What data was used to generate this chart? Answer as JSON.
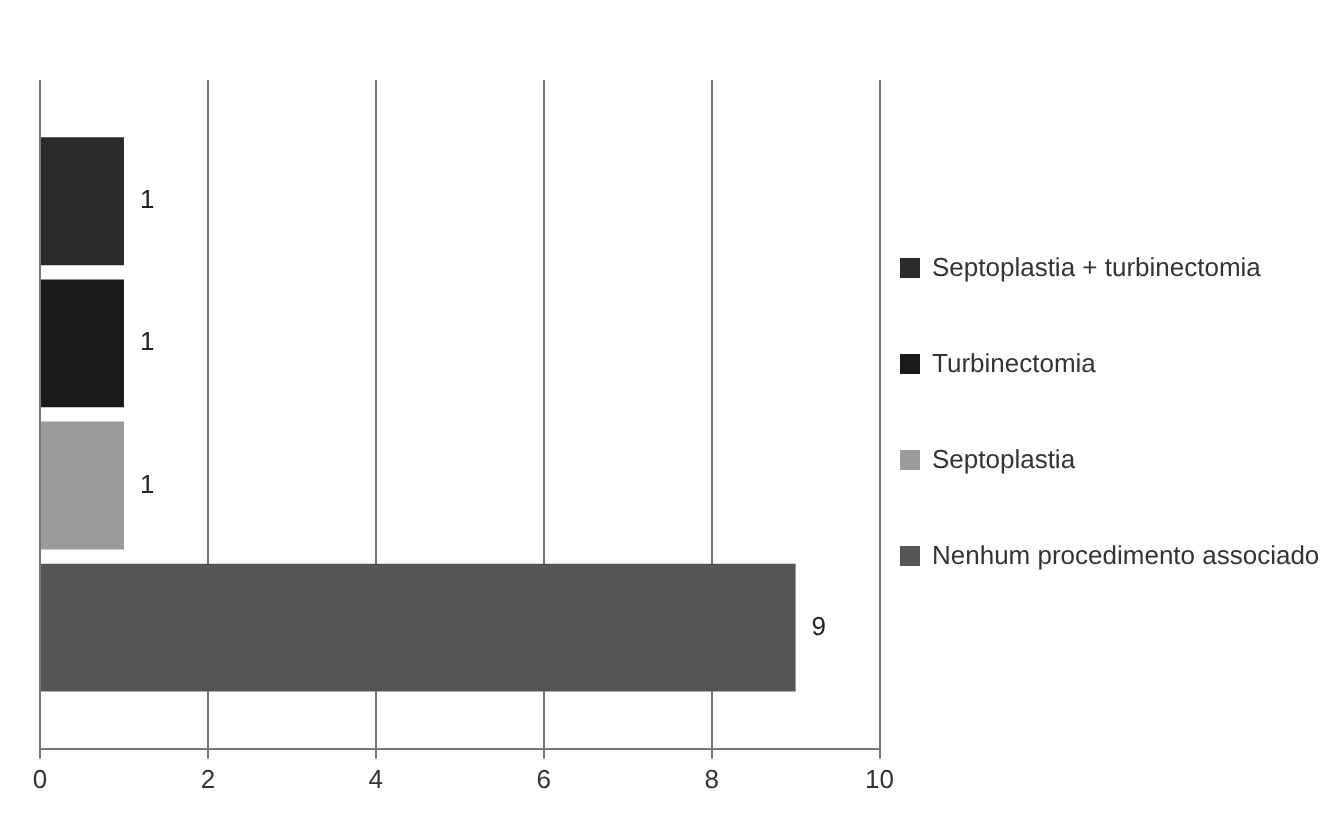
{
  "chart_data": {
    "type": "bar",
    "orientation": "horizontal",
    "categories": [
      null
    ],
    "series": [
      {
        "name": "Septoplastia + turbinectomia",
        "color": "#2b2b2b",
        "values": [
          1
        ]
      },
      {
        "name": "Turbinectomia",
        "color": "#1a1a1a",
        "values": [
          1
        ]
      },
      {
        "name": "Septoplastia",
        "color": "#9a9a9a",
        "values": [
          1
        ]
      },
      {
        "name": "Nenhum procedimento associado",
        "color": "#555555",
        "values": [
          9
        ]
      }
    ],
    "xlim": [
      0,
      10
    ],
    "xticks": [
      0,
      2,
      4,
      6,
      8,
      10
    ],
    "grid": "x",
    "legend": "right",
    "data_labels": true
  }
}
